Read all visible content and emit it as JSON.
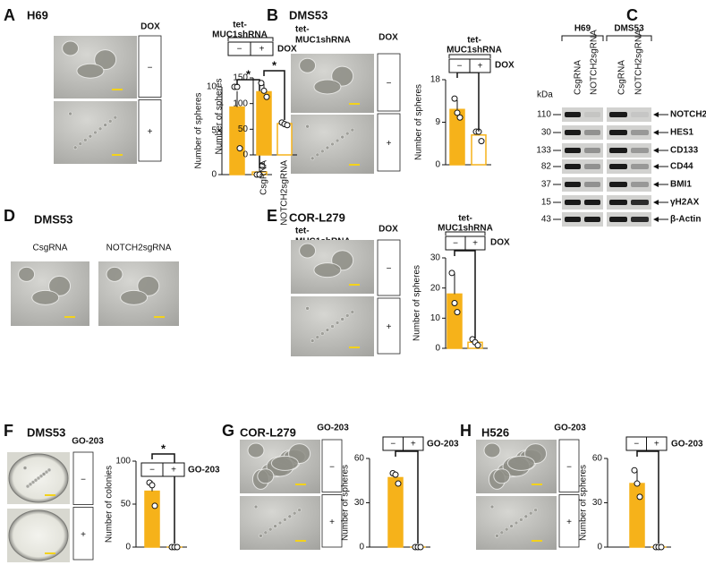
{
  "panels": [
    {
      "letter": "A",
      "title": "H69",
      "factor": "DOX",
      "conditions": [
        "−",
        "+"
      ]
    },
    {
      "letter": "B",
      "title": "DMS53",
      "group": [
        "tet-",
        "MUC1shRNA"
      ],
      "factor": "DOX",
      "conditions": [
        "−",
        "+"
      ]
    },
    {
      "letter": "C"
    },
    {
      "letter": "D",
      "title": "DMS53",
      "image_labels": [
        "CsgRNA",
        "NOTCH2sgRNA"
      ]
    },
    {
      "letter": "E",
      "title": "COR-L279",
      "group": [
        "tet-",
        "MUC1shRNA"
      ],
      "factor": "DOX",
      "conditions": [
        "−",
        "+"
      ]
    },
    {
      "letter": "F",
      "title": "DMS53",
      "factor": "GO-203",
      "conditions": [
        "−",
        "+"
      ]
    },
    {
      "letter": "G",
      "title": "COR-L279",
      "factor": "GO-203",
      "conditions": [
        "−",
        "+"
      ]
    },
    {
      "letter": "H",
      "title": "H526",
      "factor": "GO-203",
      "conditions": [
        "−",
        "+"
      ]
    }
  ],
  "blot": {
    "lane_groups": [
      "H69",
      "DMS53"
    ],
    "lanes": [
      "CsgRNA",
      "NOTCH2sgRNA",
      "CsgRNA",
      "NOTCH2sgRNA"
    ],
    "unit": "kDa",
    "rows": [
      {
        "kda": "110",
        "protein": "NOTCH2"
      },
      {
        "kda": "30",
        "protein": "HES1"
      },
      {
        "kda": "133",
        "protein": "CD133"
      },
      {
        "kda": "82",
        "protein": "CD44"
      },
      {
        "kda": "37",
        "protein": "BMI1"
      },
      {
        "kda": "15",
        "protein": "γH2AX"
      },
      {
        "kda": "43",
        "protein": "β-Actin"
      }
    ]
  },
  "chart_data": [
    {
      "type": "bar",
      "ylabel": "Number of spheres",
      "group_label": [
        "tet-",
        "MUC1shRNA"
      ],
      "factor": "DOX",
      "categories": [
        "−",
        "+"
      ],
      "values": [
        7.7,
        0.3
      ],
      "errors": [
        1.8,
        0.4
      ],
      "points": [
        [
          10,
          10,
          3
        ],
        [
          0,
          0,
          1
        ]
      ],
      "ylim": [
        0,
        10
      ],
      "yticks": [
        0,
        5,
        10
      ],
      "annotation": "*",
      "colors": [
        "#f6b21a",
        "#ffffff"
      ],
      "edge_color": "#f6b21a"
    },
    {
      "type": "bar",
      "ylabel": "Number of spheres",
      "group_label": [
        "tet-",
        "MUC1shRNA"
      ],
      "factor": "DOX",
      "categories": [
        "−",
        "+"
      ],
      "values": [
        11.7,
        6.3
      ],
      "errors": [
        2,
        1
      ],
      "points": [
        [
          14,
          11,
          10
        ],
        [
          7,
          7,
          5
        ]
      ],
      "ylim": [
        0,
        18
      ],
      "yticks": [
        0,
        9,
        18
      ],
      "annotation": "*",
      "colors": [
        "#f6b21a",
        "#ffffff"
      ],
      "edge_color": "#f6b21a"
    },
    {
      "type": "bar",
      "ylabel": "Number of spheres",
      "categories": [
        "CsgRNA",
        "NOTCH2sgRNA"
      ],
      "values": [
        123,
        61
      ],
      "errors": [
        15,
        3
      ],
      "points": [
        [
          140,
          125,
          113
        ],
        [
          63,
          60,
          58
        ]
      ],
      "ylim": [
        0,
        150
      ],
      "yticks": [
        0,
        50,
        100,
        150
      ],
      "annotation": "*",
      "colors": [
        "#f6b21a",
        "#ffffff"
      ],
      "edge_color": "#f6b21a"
    },
    {
      "type": "bar",
      "ylabel": "Number of spheres",
      "group_label": [
        "tet-",
        "MUC1shRNA"
      ],
      "factor": "DOX",
      "categories": [
        "−",
        "+"
      ],
      "values": [
        18,
        2
      ],
      "errors": [
        7,
        1
      ],
      "points": [
        [
          25,
          15,
          12
        ],
        [
          3,
          2,
          1
        ]
      ],
      "ylim": [
        0,
        30
      ],
      "yticks": [
        0,
        10,
        20,
        30
      ],
      "annotation": "*",
      "colors": [
        "#f6b21a",
        "#ffffff"
      ],
      "edge_color": "#f6b21a"
    },
    {
      "type": "bar",
      "ylabel": "Number of colonies",
      "factor": "GO-203",
      "categories": [
        "−",
        "+"
      ],
      "values": [
        65,
        0
      ],
      "errors": [
        12,
        0
      ],
      "points": [
        [
          75,
          72,
          48
        ],
        [
          0,
          0,
          0
        ]
      ],
      "ylim": [
        0,
        100
      ],
      "yticks": [
        0,
        50,
        100
      ],
      "annotation": "*",
      "colors": [
        "#f6b21a",
        "#ffffff"
      ],
      "edge_color": "#f6b21a"
    },
    {
      "type": "bar",
      "ylabel": "Number of spheres",
      "factor": "GO-203",
      "categories": [
        "−",
        "+"
      ],
      "values": [
        47,
        0
      ],
      "errors": [
        4,
        0
      ],
      "points": [
        [
          50,
          49,
          43
        ],
        [
          0,
          0,
          0
        ]
      ],
      "ylim": [
        0,
        60
      ],
      "yticks": [
        0,
        30,
        60
      ],
      "annotation": "*",
      "colors": [
        "#f6b21a",
        "#ffffff"
      ],
      "edge_color": "#f6b21a"
    },
    {
      "type": "bar",
      "ylabel": "Number of spheres",
      "factor": "GO-203",
      "categories": [
        "−",
        "+"
      ],
      "values": [
        43,
        0
      ],
      "errors": [
        9,
        0
      ],
      "points": [
        [
          52,
          43,
          34
        ],
        [
          0,
          0,
          0
        ]
      ],
      "ylim": [
        0,
        60
      ],
      "yticks": [
        0,
        30,
        60
      ],
      "annotation": "*",
      "colors": [
        "#f6b21a",
        "#ffffff"
      ],
      "edge_color": "#f6b21a"
    }
  ]
}
